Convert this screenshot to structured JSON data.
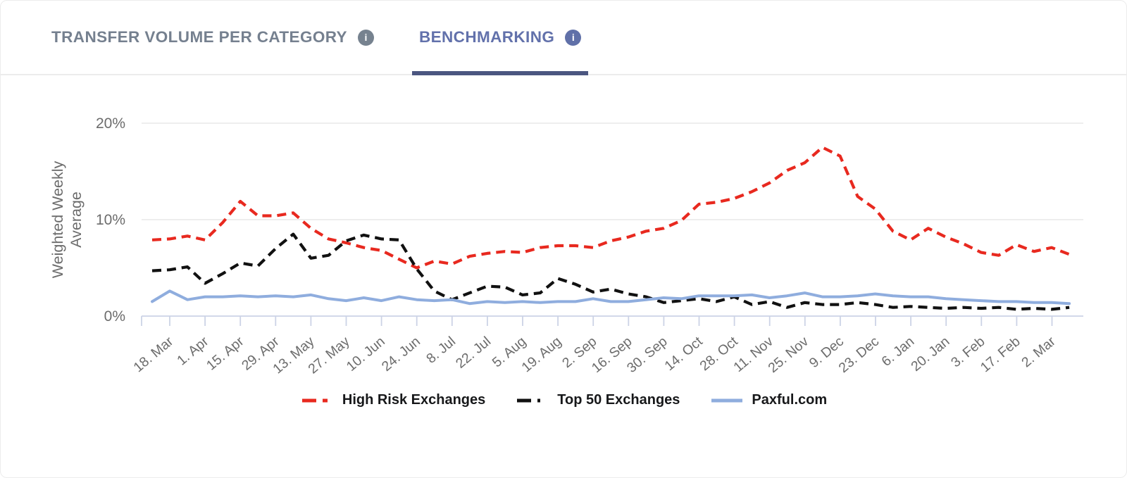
{
  "tabs": [
    {
      "label": "TRANSFER VOLUME PER CATEGORY",
      "active": false
    },
    {
      "label": "BENCHMARKING",
      "active": true
    }
  ],
  "icons": {
    "info_glyph": "i"
  },
  "colors": {
    "tab_inactive": "#75808f",
    "tab_active": "#6271ab",
    "tab_underline": "#4b5680",
    "info_icon_inactive": "#76828f",
    "info_icon_active": "#6070a8",
    "grid": "#e8e8e8",
    "axis": "#ccd3e6",
    "axis_text": "#6c6c6c",
    "legend_text": "#17181a",
    "series_high_risk": "#e8291f",
    "series_top50": "#111111",
    "series_paxful": "#8fadde"
  },
  "chart_data": {
    "type": "line",
    "title": "",
    "xlabel": "",
    "ylabel": "Weighted Weekly Average",
    "ylabel_lines": [
      "Weighted Weekly",
      "Average"
    ],
    "ylim": [
      0,
      20
    ],
    "yticks": [
      {
        "value": 0,
        "label": "0%"
      },
      {
        "value": 10,
        "label": "10%"
      },
      {
        "value": 20,
        "label": "20%"
      }
    ],
    "grid": "horizontal",
    "legend_position": "bottom",
    "x_unit": "week",
    "note_x": "data points are weekly; tick labels mark every second week",
    "x_tick_labels": [
      "18. Mar",
      "1. Apr",
      "15. Apr",
      "29. Apr",
      "13. May",
      "27. May",
      "10. Jun",
      "24. Jun",
      "8. Jul",
      "22. Jul",
      "5. Aug",
      "19. Aug",
      "2. Sep",
      "16. Sep",
      "30. Sep",
      "14. Oct",
      "28. Oct",
      "11. Nov",
      "25. Nov",
      "9. Dec",
      "23. Dec",
      "6. Jan",
      "20. Jan",
      "3. Feb",
      "17. Feb",
      "2. Mar"
    ],
    "label_point_offset": 1,
    "points_per_label": 2,
    "series": [
      {
        "name": "High Risk Exchanges",
        "color": "#e8291f",
        "style": "dashed",
        "values": [
          7.9,
          8.0,
          8.3,
          7.9,
          9.7,
          11.9,
          10.4,
          10.4,
          10.7,
          9.1,
          8.0,
          7.6,
          7.1,
          6.8,
          5.9,
          5.0,
          5.7,
          5.4,
          6.2,
          6.5,
          6.7,
          6.6,
          7.1,
          7.3,
          7.3,
          7.1,
          7.8,
          8.2,
          8.8,
          9.1,
          9.9,
          11.6,
          11.8,
          12.2,
          12.9,
          13.8,
          15.1,
          15.9,
          17.5,
          16.6,
          12.4,
          11.1,
          8.8,
          7.9,
          9.1,
          8.2,
          7.5,
          6.6,
          6.3,
          7.4,
          6.7,
          7.1,
          6.4
        ]
      },
      {
        "name": "Top 50 Exchanges",
        "color": "#111111",
        "style": "dashed",
        "values": [
          4.7,
          4.8,
          5.1,
          3.4,
          4.4,
          5.5,
          5.2,
          7.0,
          8.5,
          6.0,
          6.3,
          7.8,
          8.4,
          8.0,
          7.9,
          4.9,
          2.6,
          1.7,
          2.4,
          3.1,
          3.0,
          2.2,
          2.4,
          3.9,
          3.3,
          2.5,
          2.8,
          2.3,
          2.0,
          1.4,
          1.6,
          1.8,
          1.5,
          2.0,
          1.2,
          1.5,
          0.9,
          1.4,
          1.2,
          1.2,
          1.4,
          1.2,
          0.9,
          1.0,
          0.9,
          0.8,
          0.9,
          0.8,
          0.9,
          0.7,
          0.8,
          0.7,
          0.9
        ]
      },
      {
        "name": "Paxful.com",
        "color": "#8fadde",
        "style": "solid",
        "values": [
          1.5,
          2.6,
          1.7,
          2.0,
          2.0,
          2.1,
          2.0,
          2.1,
          2.0,
          2.2,
          1.8,
          1.6,
          1.9,
          1.6,
          2.0,
          1.7,
          1.6,
          1.7,
          1.3,
          1.5,
          1.4,
          1.5,
          1.4,
          1.5,
          1.5,
          1.8,
          1.5,
          1.5,
          1.7,
          1.9,
          1.8,
          2.1,
          2.1,
          2.1,
          2.2,
          1.9,
          2.1,
          2.4,
          2.0,
          2.0,
          2.1,
          2.3,
          2.1,
          2.0,
          2.0,
          1.8,
          1.7,
          1.6,
          1.5,
          1.5,
          1.4,
          1.4,
          1.3
        ]
      }
    ]
  }
}
